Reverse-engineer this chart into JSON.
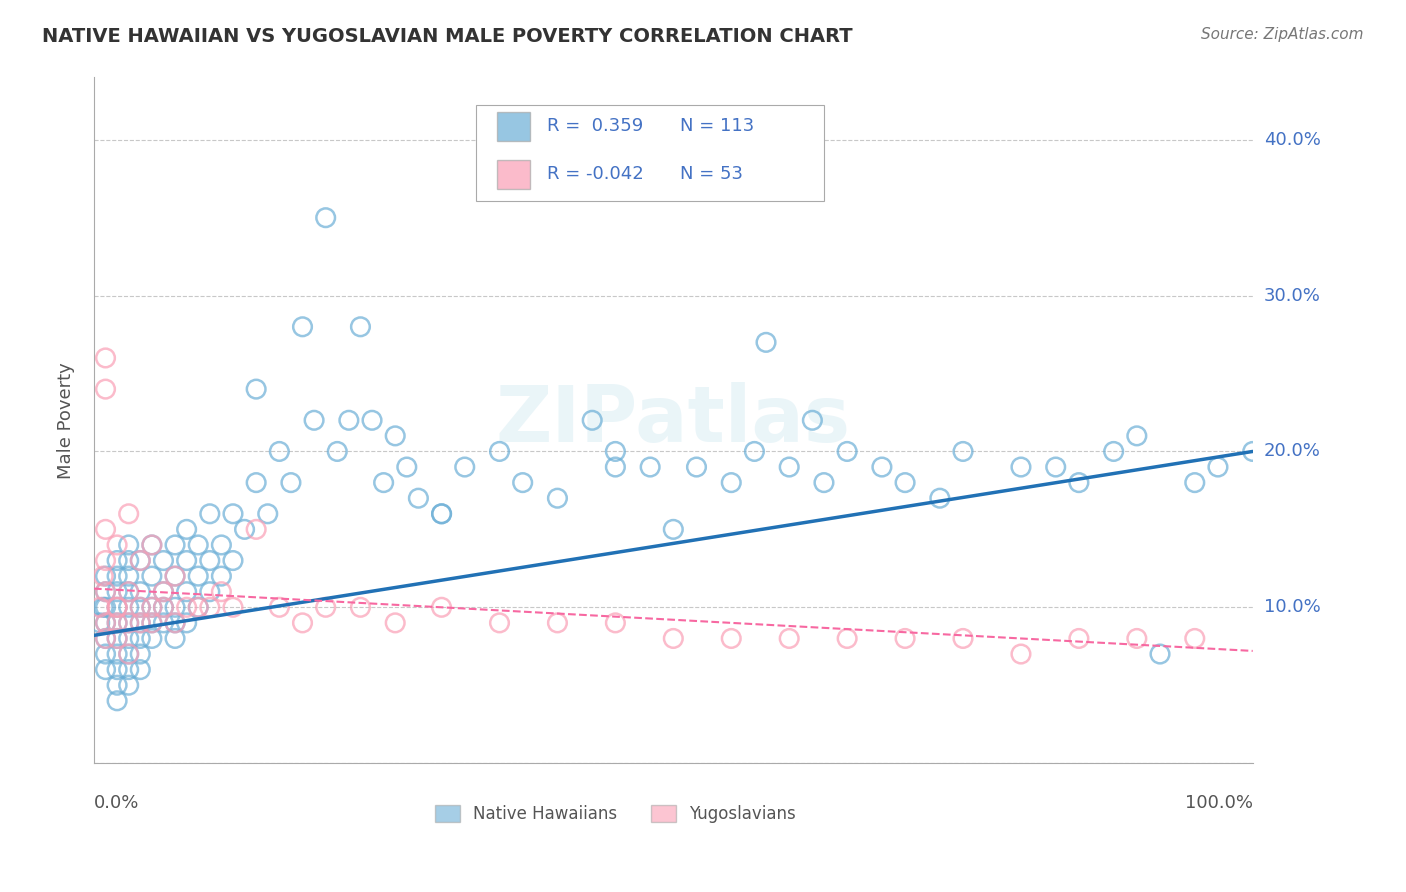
{
  "title": "NATIVE HAWAIIAN VS YUGOSLAVIAN MALE POVERTY CORRELATION CHART",
  "source": "Source: ZipAtlas.com",
  "ylabel": "Male Poverty",
  "legend_r1": "R =  0.359",
  "legend_n1": "N = 113",
  "legend_r2": "R = -0.042",
  "legend_n2": "N = 53",
  "legend_label1": "Native Hawaiians",
  "legend_label2": "Yugoslavians",
  "blue_color": "#6BAED6",
  "pink_color": "#FA9FB5",
  "trend_blue": "#2171B5",
  "trend_pink": "#F768A1",
  "watermark": "ZIPatlas",
  "xlim": [
    0.0,
    1.0
  ],
  "ylim": [
    0.0,
    0.44
  ],
  "nh_x": [
    0.005,
    0.008,
    0.01,
    0.01,
    0.01,
    0.01,
    0.01,
    0.01,
    0.01,
    0.02,
    0.02,
    0.02,
    0.02,
    0.02,
    0.02,
    0.02,
    0.02,
    0.02,
    0.02,
    0.03,
    0.03,
    0.03,
    0.03,
    0.03,
    0.03,
    0.03,
    0.03,
    0.03,
    0.03,
    0.04,
    0.04,
    0.04,
    0.04,
    0.04,
    0.04,
    0.04,
    0.05,
    0.05,
    0.05,
    0.05,
    0.05,
    0.06,
    0.06,
    0.06,
    0.06,
    0.07,
    0.07,
    0.07,
    0.07,
    0.07,
    0.08,
    0.08,
    0.08,
    0.08,
    0.09,
    0.09,
    0.09,
    0.1,
    0.1,
    0.1,
    0.11,
    0.11,
    0.12,
    0.12,
    0.13,
    0.14,
    0.15,
    0.16,
    0.17,
    0.19,
    0.2,
    0.21,
    0.22,
    0.23,
    0.24,
    0.25,
    0.26,
    0.27,
    0.28,
    0.3,
    0.32,
    0.35,
    0.37,
    0.4,
    0.43,
    0.45,
    0.48,
    0.5,
    0.52,
    0.55,
    0.57,
    0.6,
    0.63,
    0.65,
    0.68,
    0.7,
    0.73,
    0.75,
    0.8,
    0.83,
    0.85,
    0.88,
    0.9,
    0.92,
    0.95,
    0.97,
    1.0,
    0.58,
    0.62,
    0.45,
    0.3,
    0.18,
    0.14
  ],
  "nh_y": [
    0.09,
    0.1,
    0.12,
    0.1,
    0.08,
    0.09,
    0.07,
    0.11,
    0.06,
    0.1,
    0.09,
    0.11,
    0.08,
    0.07,
    0.12,
    0.06,
    0.05,
    0.13,
    0.04,
    0.1,
    0.09,
    0.11,
    0.08,
    0.07,
    0.12,
    0.06,
    0.13,
    0.05,
    0.14,
    0.1,
    0.09,
    0.08,
    0.11,
    0.07,
    0.06,
    0.13,
    0.1,
    0.09,
    0.12,
    0.08,
    0.14,
    0.11,
    0.1,
    0.13,
    0.09,
    0.12,
    0.1,
    0.14,
    0.09,
    0.08,
    0.13,
    0.11,
    0.15,
    0.09,
    0.14,
    0.12,
    0.1,
    0.16,
    0.13,
    0.11,
    0.14,
    0.12,
    0.16,
    0.13,
    0.15,
    0.18,
    0.16,
    0.2,
    0.18,
    0.22,
    0.35,
    0.2,
    0.22,
    0.28,
    0.22,
    0.18,
    0.21,
    0.19,
    0.17,
    0.16,
    0.19,
    0.2,
    0.18,
    0.17,
    0.22,
    0.2,
    0.19,
    0.15,
    0.19,
    0.18,
    0.2,
    0.19,
    0.18,
    0.2,
    0.19,
    0.18,
    0.17,
    0.2,
    0.19,
    0.19,
    0.18,
    0.2,
    0.21,
    0.07,
    0.18,
    0.19,
    0.2,
    0.27,
    0.22,
    0.19,
    0.16,
    0.28,
    0.24
  ],
  "yug_x": [
    0.005,
    0.008,
    0.01,
    0.01,
    0.01,
    0.01,
    0.01,
    0.01,
    0.01,
    0.02,
    0.02,
    0.02,
    0.02,
    0.02,
    0.03,
    0.03,
    0.03,
    0.03,
    0.04,
    0.04,
    0.04,
    0.05,
    0.05,
    0.05,
    0.06,
    0.06,
    0.07,
    0.07,
    0.08,
    0.09,
    0.1,
    0.11,
    0.12,
    0.14,
    0.16,
    0.18,
    0.2,
    0.23,
    0.26,
    0.3,
    0.35,
    0.4,
    0.45,
    0.5,
    0.55,
    0.6,
    0.65,
    0.7,
    0.75,
    0.8,
    0.85,
    0.9,
    0.95
  ],
  "yug_y": [
    0.1,
    0.12,
    0.15,
    0.13,
    0.11,
    0.09,
    0.08,
    0.26,
    0.24,
    0.09,
    0.1,
    0.08,
    0.14,
    0.1,
    0.11,
    0.09,
    0.07,
    0.16,
    0.1,
    0.09,
    0.13,
    0.1,
    0.09,
    0.14,
    0.11,
    0.1,
    0.12,
    0.09,
    0.1,
    0.1,
    0.1,
    0.11,
    0.1,
    0.15,
    0.1,
    0.09,
    0.1,
    0.1,
    0.09,
    0.1,
    0.09,
    0.09,
    0.09,
    0.08,
    0.08,
    0.08,
    0.08,
    0.08,
    0.08,
    0.07,
    0.08,
    0.08,
    0.08
  ],
  "nh_trend_x": [
    0.0,
    1.0
  ],
  "nh_trend_y": [
    0.082,
    0.2
  ],
  "yug_trend_x": [
    0.0,
    1.0
  ],
  "yug_trend_y": [
    0.112,
    0.072
  ]
}
